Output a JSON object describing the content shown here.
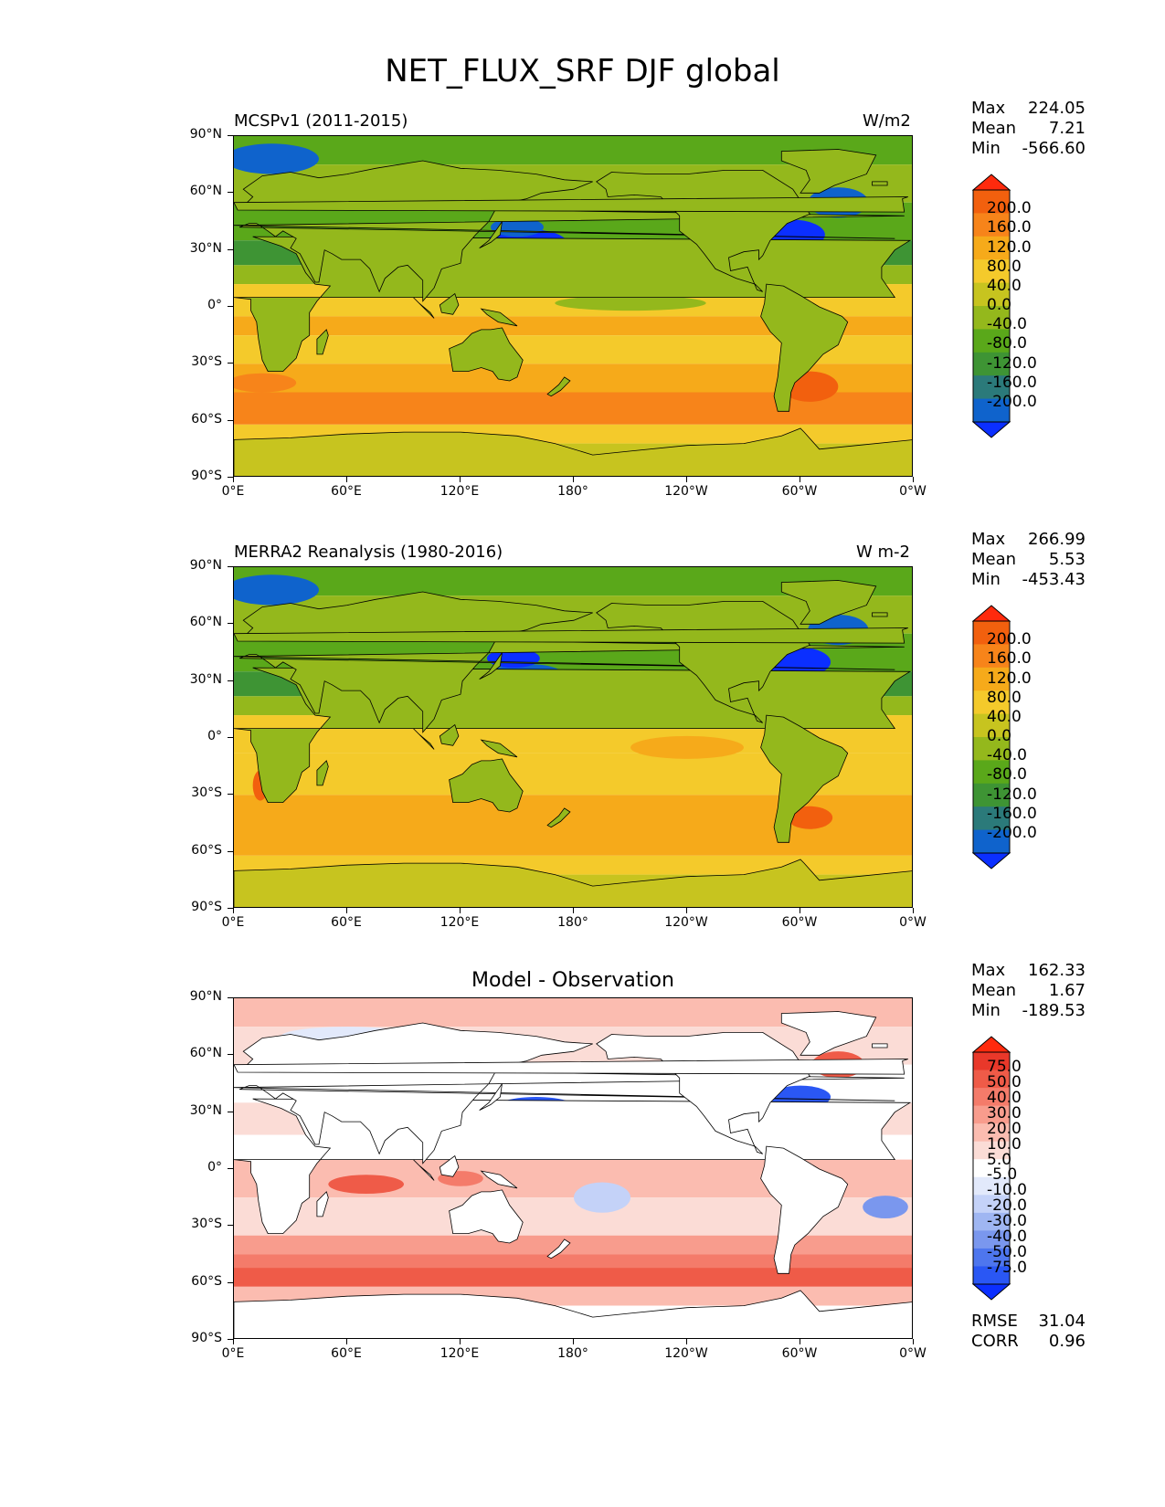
{
  "page": {
    "title": "NET_FLUX_SRF DJF global"
  },
  "colormaps": {
    "flux": [
      "#0b2fff",
      "#0f63cc",
      "#2b7a7a",
      "#3e9434",
      "#5aa81a",
      "#94b81c",
      "#c7c41f",
      "#f4ca2b",
      "#f6aa1a",
      "#f7841a",
      "#f2600e",
      "#ff2a0d"
    ],
    "diff": [
      "#0b2fff",
      "#2a57f4",
      "#4e76ee",
      "#7a97ee",
      "#9fb6f2",
      "#c4d2f8",
      "#e2e9fb",
      "#ffffff",
      "#fbdcd6",
      "#fbbcb0",
      "#f89c8d",
      "#f47b6a",
      "#ef5b48",
      "#e9382a",
      "#ff2a0d"
    ]
  },
  "panels": [
    {
      "title_left": "MCSPv1 (2011-2015)",
      "title_right": "W/m2",
      "title_center": "",
      "stats": [
        {
          "label": "Max",
          "value": "224.05"
        },
        {
          "label": "Mean",
          "value": "7.21"
        },
        {
          "label": "Min",
          "value": "-566.60"
        }
      ],
      "cbar_labels": [
        "200.0",
        "160.0",
        "120.0",
        "80.0",
        "40.0",
        "0.0",
        "-40.0",
        "-80.0",
        "-120.0",
        "-160.0",
        "-200.0"
      ],
      "colormap": "flux"
    },
    {
      "title_left": "MERRA2 Reanalysis (1980-2016)",
      "title_right": "W m-2",
      "title_center": "",
      "stats": [
        {
          "label": "Max",
          "value": "266.99"
        },
        {
          "label": "Mean",
          "value": "5.53"
        },
        {
          "label": "Min",
          "value": "-453.43"
        }
      ],
      "cbar_labels": [
        "200.0",
        "160.0",
        "120.0",
        "80.0",
        "40.0",
        "0.0",
        "-40.0",
        "-80.0",
        "-120.0",
        "-160.0",
        "-200.0"
      ],
      "colormap": "flux"
    },
    {
      "title_left": "",
      "title_right": "",
      "title_center": "Model - Observation",
      "stats": [
        {
          "label": "Max",
          "value": "162.33"
        },
        {
          "label": "Mean",
          "value": "1.67"
        },
        {
          "label": "Min",
          "value": "-189.53"
        }
      ],
      "cbar_labels": [
        "75.0",
        "50.0",
        "40.0",
        "30.0",
        "20.0",
        "10.0",
        "5.0",
        "-5.0",
        "-10.0",
        "-20.0",
        "-30.0",
        "-40.0",
        "-50.0",
        "-75.0"
      ],
      "colormap": "diff",
      "metrics": [
        {
          "label": "RMSE",
          "value": "31.04"
        },
        {
          "label": "CORR",
          "value": "0.96"
        }
      ]
    }
  ],
  "chart_data": [
    {
      "type": "heatmap",
      "title": "MCSPv1 (2011-2015)",
      "units": "W/m2",
      "x_ticks": [
        "0°E",
        "60°E",
        "120°E",
        "180°",
        "120°W",
        "60°W",
        "0°W"
      ],
      "y_ticks": [
        "90°N",
        "60°N",
        "30°N",
        "0°",
        "30°S",
        "60°S",
        "90°S"
      ],
      "xlim": [
        0,
        360
      ],
      "ylim": [
        -90,
        90
      ],
      "levels": [
        -200,
        -160,
        -120,
        -80,
        -40,
        0,
        40,
        80,
        120,
        160,
        200
      ],
      "max": 224.05,
      "mean": 7.21,
      "min": -566.6
    },
    {
      "type": "heatmap",
      "title": "MERRA2 Reanalysis (1980-2016)",
      "units": "W m-2",
      "x_ticks": [
        "0°E",
        "60°E",
        "120°E",
        "180°",
        "120°W",
        "60°W",
        "0°W"
      ],
      "y_ticks": [
        "90°N",
        "60°N",
        "30°N",
        "0°",
        "30°S",
        "60°S",
        "90°S"
      ],
      "xlim": [
        0,
        360
      ],
      "ylim": [
        -90,
        90
      ],
      "levels": [
        -200,
        -160,
        -120,
        -80,
        -40,
        0,
        40,
        80,
        120,
        160,
        200
      ],
      "max": 266.99,
      "mean": 5.53,
      "min": -453.43
    },
    {
      "type": "heatmap",
      "title": "Model - Observation",
      "x_ticks": [
        "0°E",
        "60°E",
        "120°E",
        "180°",
        "120°W",
        "60°W",
        "0°W"
      ],
      "y_ticks": [
        "90°N",
        "60°N",
        "30°N",
        "0°",
        "30°S",
        "60°S",
        "90°S"
      ],
      "xlim": [
        0,
        360
      ],
      "ylim": [
        -90,
        90
      ],
      "levels": [
        -75,
        -50,
        -40,
        -30,
        -20,
        -10,
        -5,
        5,
        10,
        20,
        30,
        40,
        50,
        75
      ],
      "max": 162.33,
      "mean": 1.67,
      "min": -189.53,
      "rmse": 31.04,
      "corr": 0.96
    }
  ]
}
